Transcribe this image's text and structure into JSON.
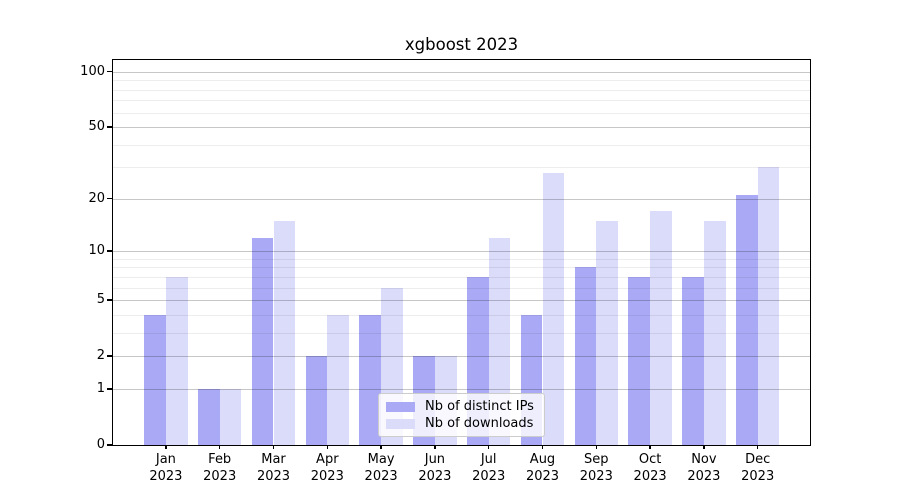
{
  "title": "xgboost 2023",
  "legend": {
    "items": [
      {
        "label": "Nb of distinct IPs"
      },
      {
        "label": "Nb of downloads"
      }
    ],
    "position": "lower center"
  },
  "colors": {
    "distinct_ips_bar": "#a9a9f5",
    "downloads_bar": "#dbdbfa",
    "grid_major": "rgba(0,0,0,0.22)",
    "grid_minor": "rgba(0,0,0,0.07)",
    "spine": "#000000",
    "legend_border": "#cccccc",
    "legend_background": "rgba(255,255,255,0.8)",
    "background": "#ffffff",
    "text": "#000000"
  },
  "chart_data": {
    "type": "bar",
    "title": "xgboost 2023",
    "categories": [
      "Jan 2023",
      "Feb 2023",
      "Mar 2023",
      "Apr 2023",
      "May 2023",
      "Jun 2023",
      "Jul 2023",
      "Aug 2023",
      "Sep 2023",
      "Oct 2023",
      "Nov 2023",
      "Dec 2023"
    ],
    "series": [
      {
        "name": "Nb of distinct IPs",
        "color": "#a9a9f5",
        "values": [
          4,
          1,
          12,
          2,
          4,
          2,
          7,
          4,
          8,
          7,
          7,
          21
        ]
      },
      {
        "name": "Nb of downloads",
        "color": "#dbdbfa",
        "values": [
          7,
          1,
          15,
          4,
          6,
          2,
          12,
          28,
          15,
          17,
          15,
          30
        ]
      }
    ],
    "xlabel": "",
    "ylabel": "",
    "yscale": "log1p",
    "ylim": [
      0,
      115
    ],
    "y_major_ticks": [
      0,
      1,
      2,
      5,
      10,
      20,
      50,
      100
    ],
    "y_minor_ticks": [
      3,
      4,
      6,
      7,
      8,
      9,
      30,
      40,
      60,
      70,
      80,
      90
    ],
    "grid": "major and minor horizontal gridlines drawn above bars",
    "legend_position": "lower center"
  }
}
